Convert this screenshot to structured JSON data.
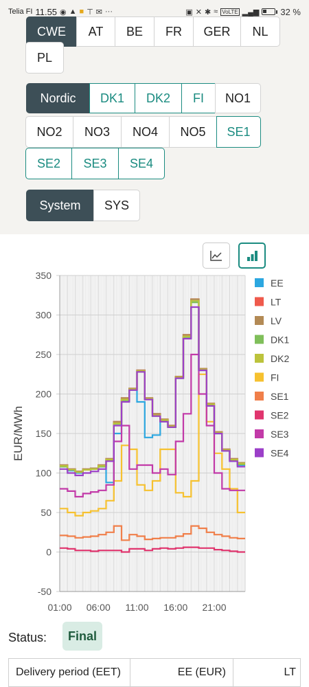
{
  "statusbar": {
    "carrier": "Telia FI",
    "time": "11.55",
    "battery": "32 %",
    "icons": [
      "notification-icon",
      "bell-icon",
      "wallet-icon",
      "antenna-icon",
      "gmail-icon",
      "more-icon",
      "nfc-icon",
      "mute-icon",
      "bluetooth-icon",
      "wifi-icon",
      "volte-icon",
      "signal-icon",
      "battery-icon"
    ],
    "more": "···",
    "volte": "VoLTE"
  },
  "filters": {
    "region_row1": [
      {
        "label": "CWE",
        "state": "dark"
      },
      {
        "label": "AT",
        "state": "plain"
      },
      {
        "label": "BE",
        "state": "plain"
      },
      {
        "label": "FR",
        "state": "plain"
      },
      {
        "label": "GER",
        "state": "plain"
      },
      {
        "label": "NL",
        "state": "plain"
      }
    ],
    "region_row2": [
      {
        "label": "PL",
        "state": "plain"
      }
    ],
    "nordic": [
      {
        "label": "Nordic",
        "state": "dark"
      },
      {
        "label": "DK1",
        "state": "teal"
      },
      {
        "label": "DK2",
        "state": "teal"
      },
      {
        "label": "FI",
        "state": "teal"
      },
      {
        "label": "NO1",
        "state": "plain"
      },
      {
        "label": "NO2",
        "state": "plain"
      },
      {
        "label": "NO3",
        "state": "plain"
      },
      {
        "label": "NO4",
        "state": "plain"
      },
      {
        "label": "NO5",
        "state": "plain"
      },
      {
        "label": "SE1",
        "state": "teal"
      },
      {
        "label": "SE2",
        "state": "teal"
      },
      {
        "label": "SE3",
        "state": "teal"
      },
      {
        "label": "SE4",
        "state": "teal"
      }
    ],
    "system": [
      {
        "label": "System",
        "state": "dark"
      },
      {
        "label": "SYS",
        "state": "plain"
      }
    ]
  },
  "toolbar": {
    "line_icon": "line-chart-icon",
    "bar_icon": "bar-chart-icon"
  },
  "chart_data": {
    "type": "line",
    "ylabel": "EUR/MWh",
    "xlabel": "",
    "ylim": [
      -50,
      350
    ],
    "yticks": [
      -50,
      0,
      50,
      100,
      150,
      200,
      250,
      300,
      350
    ],
    "xticks": [
      "01:00",
      "06:00",
      "11:00",
      "16:00",
      "21:00"
    ],
    "x": [
      "01:00",
      "02:00",
      "03:00",
      "04:00",
      "05:00",
      "06:00",
      "07:00",
      "08:00",
      "09:00",
      "10:00",
      "11:00",
      "12:00",
      "13:00",
      "14:00",
      "15:00",
      "16:00",
      "17:00",
      "18:00",
      "19:00",
      "20:00",
      "21:00",
      "22:00",
      "23:00",
      "24:00"
    ],
    "grid": true,
    "legend_position": "right",
    "series": [
      {
        "name": "EE",
        "color": "#2ca7e0",
        "values": [
          108,
          103,
          100,
          104,
          105,
          108,
          88,
          150,
          192,
          205,
          190,
          145,
          148,
          165,
          158,
          220,
          272,
          318,
          230,
          185,
          150,
          128,
          115,
          110
        ]
      },
      {
        "name": "LT",
        "color": "#ef5a4c",
        "values": [
          110,
          105,
          102,
          105,
          106,
          110,
          118,
          165,
          195,
          207,
          230,
          195,
          175,
          168,
          160,
          222,
          275,
          320,
          232,
          188,
          152,
          130,
          118,
          113
        ]
      },
      {
        "name": "LV",
        "color": "#b38a55",
        "values": [
          110,
          105,
          102,
          105,
          106,
          110,
          118,
          165,
          195,
          207,
          230,
          195,
          175,
          168,
          160,
          222,
          275,
          320,
          232,
          188,
          152,
          130,
          118,
          113
        ]
      },
      {
        "name": "DK1",
        "color": "#7fbf5a",
        "values": [
          108,
          104,
          101,
          104,
          105,
          108,
          116,
          162,
          192,
          205,
          228,
          193,
          172,
          166,
          158,
          220,
          272,
          316,
          230,
          186,
          150,
          128,
          116,
          111
        ]
      },
      {
        "name": "DK2",
        "color": "#bcc33c",
        "values": [
          109,
          104,
          101,
          104,
          105,
          109,
          117,
          163,
          193,
          206,
          229,
          194,
          173,
          167,
          159,
          221,
          273,
          318,
          231,
          187,
          151,
          129,
          117,
          112
        ]
      },
      {
        "name": "FI",
        "color": "#f6c12f",
        "values": [
          55,
          50,
          46,
          50,
          52,
          55,
          65,
          90,
          135,
          130,
          85,
          78,
          90,
          130,
          130,
          75,
          70,
          90,
          225,
          165,
          125,
          105,
          80,
          50
        ]
      },
      {
        "name": "SE1",
        "color": "#f07f4a",
        "values": [
          21,
          20,
          18,
          19,
          20,
          22,
          25,
          33,
          15,
          22,
          20,
          16,
          17,
          18,
          18,
          20,
          23,
          33,
          30,
          25,
          22,
          20,
          18,
          17
        ]
      },
      {
        "name": "SE2",
        "color": "#e0356e",
        "values": [
          5,
          4,
          2,
          2,
          1,
          2,
          2,
          2,
          0,
          4,
          4,
          2,
          4,
          5,
          4,
          5,
          6,
          6,
          5,
          5,
          3,
          2,
          1,
          0
        ]
      },
      {
        "name": "SE3",
        "color": "#c23aa8",
        "values": [
          80,
          77,
          70,
          74,
          76,
          78,
          85,
          140,
          160,
          105,
          110,
          110,
          100,
          105,
          98,
          140,
          175,
          250,
          200,
          160,
          100,
          80,
          78,
          78
        ]
      },
      {
        "name": "SE4",
        "color": "#9b3fc8",
        "values": [
          105,
          100,
          97,
          100,
          102,
          105,
          115,
          160,
          190,
          205,
          228,
          193,
          172,
          165,
          158,
          220,
          270,
          310,
          230,
          185,
          150,
          128,
          115,
          108
        ]
      }
    ]
  },
  "status": {
    "label": "Status:",
    "value": "Final"
  },
  "table": {
    "headers": [
      "Delivery period (EET)",
      "EE (EUR)",
      "LT"
    ]
  }
}
